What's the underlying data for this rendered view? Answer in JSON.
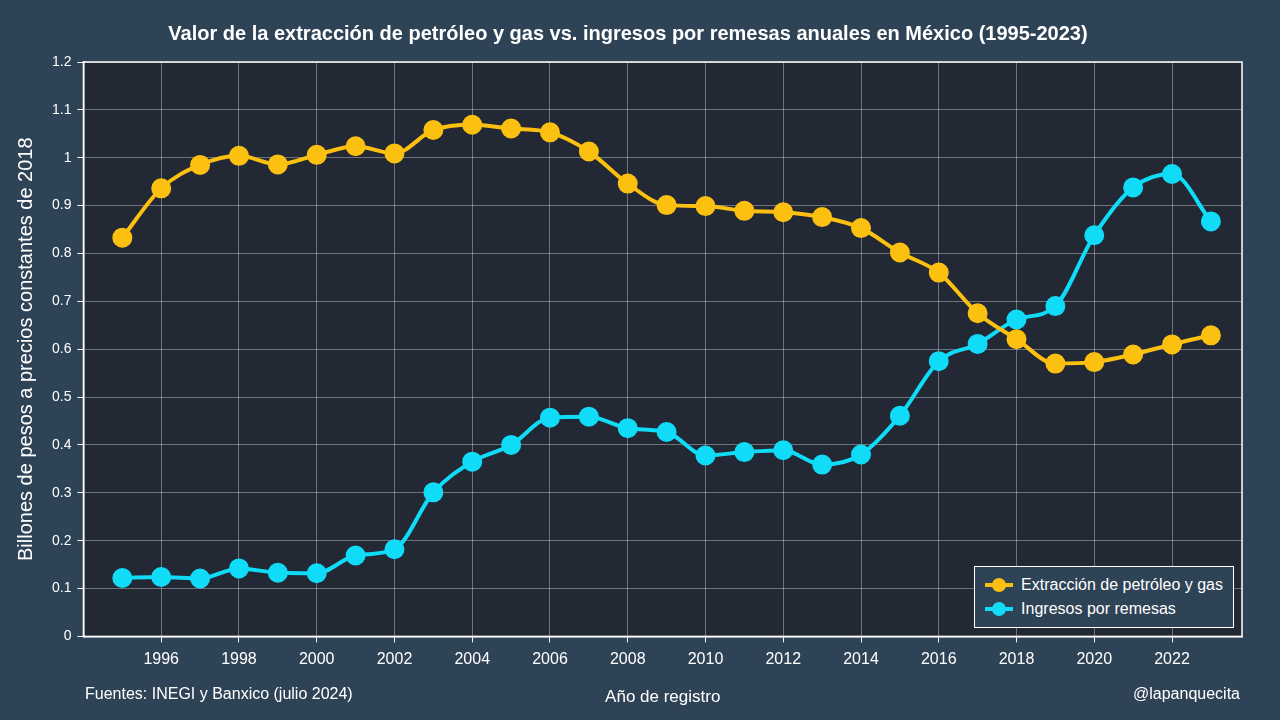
{
  "chart_data": {
    "type": "line",
    "title": "Valor de la extracción de petróleo y gas vs. ingresos por remesas anuales en México (1995-2023)",
    "x_label": "Año de registro",
    "y_label": "Billones de pesos a precios constantes de 2018",
    "source": "Fuentes: INEGI y Banxico (julio 2024)",
    "credit": "@lapanquecita",
    "x": [
      1995,
      1996,
      1997,
      1998,
      1999,
      2000,
      2001,
      2002,
      2003,
      2004,
      2005,
      2006,
      2007,
      2008,
      2009,
      2010,
      2011,
      2012,
      2013,
      2014,
      2015,
      2016,
      2017,
      2018,
      2019,
      2020,
      2021,
      2022,
      2023
    ],
    "series": [
      {
        "name": "Extracción de petróleo y gas",
        "color": "#fcc010",
        "marker": "circle",
        "line_style": "solid",
        "values": [
          0.833,
          0.936,
          0.985,
          1.004,
          0.986,
          1.006,
          1.024,
          1.009,
          1.058,
          1.069,
          1.061,
          1.053,
          1.013,
          0.946,
          0.901,
          0.899,
          0.889,
          0.886,
          0.876,
          0.853,
          0.802,
          0.76,
          0.675,
          0.621,
          0.57,
          0.573,
          0.589,
          0.61,
          0.629
        ]
      },
      {
        "name": "Ingresos por remesas",
        "color": "#10dcf8",
        "marker": "circle",
        "line_style": "solid",
        "values": [
          0.122,
          0.124,
          0.121,
          0.142,
          0.133,
          0.132,
          0.169,
          0.182,
          0.301,
          0.365,
          0.4,
          0.457,
          0.459,
          0.435,
          0.427,
          0.378,
          0.385,
          0.389,
          0.359,
          0.38,
          0.461,
          0.575,
          0.611,
          0.662,
          0.69,
          0.838,
          0.938,
          0.966,
          0.867
        ]
      }
    ],
    "xlim": [
      1994,
      2023.8
    ],
    "xticks": [
      1996,
      1998,
      2000,
      2002,
      2004,
      2006,
      2008,
      2010,
      2012,
      2014,
      2016,
      2018,
      2020,
      2022
    ],
    "ylim": [
      0,
      1.2
    ],
    "yticks": [
      0,
      0.1,
      0.2,
      0.3,
      0.4,
      0.5,
      0.6,
      0.7,
      0.8,
      0.9,
      1,
      1.1,
      1.2
    ],
    "grid": true,
    "legend": "lower right"
  }
}
